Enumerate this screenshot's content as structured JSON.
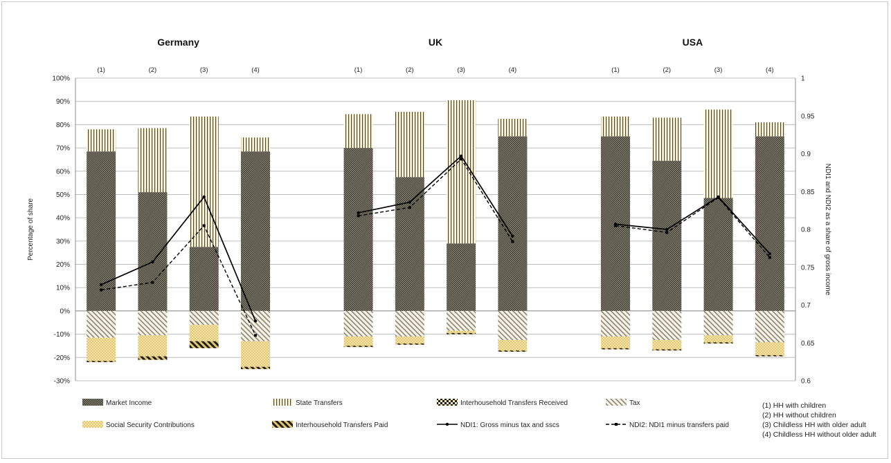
{
  "chart_data": {
    "type": "bar",
    "subtype": "stacked bar with line overlay (secondary axis)",
    "countries": [
      "Germany",
      "UK",
      "USA"
    ],
    "groups": [
      "(1)",
      "(2)",
      "(3)",
      "(4)"
    ],
    "notes": [
      "(1) HH with children",
      "(2) HH without children",
      "(3) Childless HH with older adult",
      "(4) Childless HH without older adult"
    ],
    "ylabel": "Percentage of share",
    "y2label": "NDI1 and NDI2 as a share of gross income",
    "ylim": [
      -30,
      100
    ],
    "y2lim": [
      0.6,
      1.0
    ],
    "y_ticks": [
      "-30%",
      "-20%",
      "-10%",
      "0%",
      "10%",
      "20%",
      "30%",
      "40%",
      "50%",
      "60%",
      "70%",
      "80%",
      "90%",
      "100%"
    ],
    "y2_ticks": [
      "0.6",
      "0.65",
      "0.7",
      "0.75",
      "0.8",
      "0.85",
      "0.9",
      "0.95",
      "1"
    ],
    "grid": true,
    "legend_position": "bottom",
    "series": [
      {
        "name": "Market Income",
        "kind": "bar",
        "color": "#5e5a4e",
        "values": [
          [
            68.5,
            51,
            27.5,
            68.5
          ],
          [
            70,
            57.5,
            29,
            75
          ],
          [
            75,
            64.5,
            48.5,
            75
          ]
        ]
      },
      {
        "name": "State Transfers",
        "kind": "bar",
        "color": "#fff6d4",
        "values": [
          [
            9.5,
            27.5,
            56,
            6
          ],
          [
            14.5,
            28,
            61.5,
            7.5
          ],
          [
            8.5,
            18.5,
            38,
            6
          ]
        ]
      },
      {
        "name": "Interhousehold Transfers Received",
        "kind": "bar",
        "color": "#2a2a2a",
        "values": [
          [
            0,
            0,
            0,
            0
          ],
          [
            0,
            0,
            0,
            0
          ],
          [
            0,
            0,
            0,
            0
          ]
        ]
      },
      {
        "name": "Tax",
        "kind": "bar",
        "color": "#d9d4c6",
        "values": [
          [
            -11.5,
            -10.5,
            -6,
            -13
          ],
          [
            -11,
            -11,
            -8.5,
            -12.5
          ],
          [
            -11,
            -12.5,
            -10.5,
            -13.5
          ]
        ]
      },
      {
        "name": "Social Security Contributions",
        "kind": "bar",
        "color": "#f1d98a",
        "values": [
          [
            -10,
            -9,
            -7,
            -11
          ],
          [
            -4,
            -3,
            -1,
            -4.5
          ],
          [
            -5,
            -4,
            -3,
            -5.5
          ]
        ]
      },
      {
        "name": "Interhousehold Transfers Paid",
        "kind": "bar",
        "color": "#b59c3a",
        "values": [
          [
            -0.5,
            -1.5,
            -3,
            -1
          ],
          [
            -0.5,
            -0.5,
            -0.5,
            -0.5
          ],
          [
            -0.5,
            -0.5,
            -0.5,
            -0.5
          ]
        ]
      },
      {
        "name": "NDI1: Gross minus tax and sscs",
        "kind": "line",
        "axis": "secondary",
        "values": [
          [
            0.727,
            0.757,
            0.843,
            0.679
          ],
          [
            0.822,
            0.836,
            0.897,
            0.791
          ],
          [
            0.807,
            0.8,
            0.843,
            0.768
          ]
        ]
      },
      {
        "name": "NDI2: NDI1 minus transfers paid",
        "kind": "line",
        "axis": "secondary",
        "values": [
          [
            0.72,
            0.73,
            0.805,
            0.66
          ],
          [
            0.818,
            0.829,
            0.893,
            0.784
          ],
          [
            0.805,
            0.796,
            0.842,
            0.763
          ]
        ]
      }
    ]
  }
}
